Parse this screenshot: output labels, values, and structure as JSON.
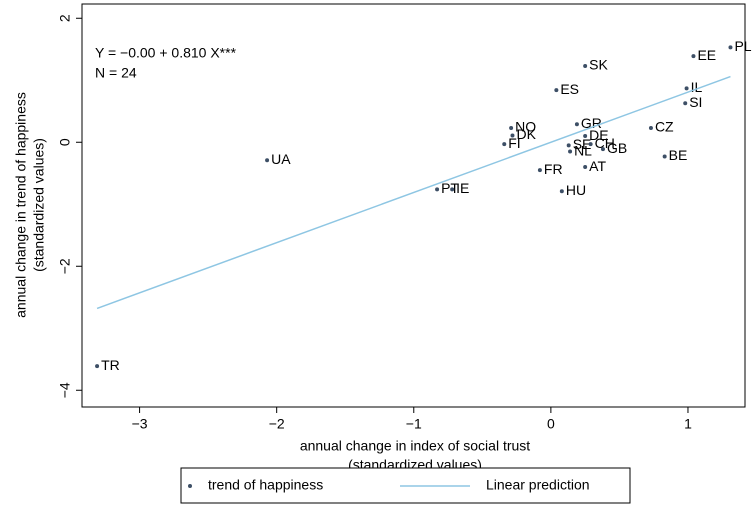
{
  "chart_data": {
    "type": "scatter",
    "annotations": [
      "Y = −0.00 + 0.810 X***",
      "N = 24"
    ],
    "x_label": [
      "annual change in index of social trust",
      "(standardized values)"
    ],
    "y_label": [
      "annual change in trend of happiness",
      "(standardized values)"
    ],
    "xlim": [
      -3.42,
      1.416
    ],
    "ylim": [
      -4.27,
      2.23
    ],
    "xticks": [
      {
        "value": -3,
        "label": "−3"
      },
      {
        "value": -2,
        "label": "−2"
      },
      {
        "value": -1,
        "label": "−1"
      },
      0,
      1
    ],
    "yticks": [
      {
        "value": -4,
        "label": "−4"
      },
      {
        "value": -2,
        "label": "−2"
      },
      0,
      2
    ],
    "grid": false,
    "legend": "bottom",
    "series": [
      {
        "name": "trend of happiness",
        "color": "#3d4f66",
        "labels": [
          "PL",
          "EE",
          "SK",
          "IL",
          "SI",
          "ES",
          "GR",
          "CZ",
          "NO",
          "DK",
          "DE",
          "FI",
          "SE",
          "CH",
          "NL",
          "GB",
          "BE",
          "UA",
          "FR",
          "AT",
          "PT",
          "IE",
          "HU",
          "TR"
        ],
        "x": [
          1.31,
          1.04,
          0.25,
          0.99,
          0.98,
          0.04,
          0.19,
          0.73,
          -0.29,
          -0.28,
          0.25,
          -0.34,
          0.13,
          0.29,
          0.14,
          0.38,
          0.83,
          -2.07,
          -0.08,
          0.25,
          -0.83,
          -0.72,
          0.08,
          -3.31
        ],
        "values": [
          1.53,
          1.39,
          1.23,
          0.87,
          0.63,
          0.84,
          0.29,
          0.23,
          0.23,
          0.11,
          0.1,
          -0.03,
          -0.05,
          -0.03,
          -0.15,
          -0.11,
          -0.23,
          -0.29,
          -0.45,
          -0.4,
          -0.76,
          -0.76,
          -0.79,
          -3.61
        ]
      },
      {
        "name": "Linear prediction",
        "type": "line",
        "color": "#8ec6e3",
        "x": [
          -3.31,
          1.31
        ],
        "values": [
          -2.68,
          1.06
        ]
      }
    ]
  }
}
